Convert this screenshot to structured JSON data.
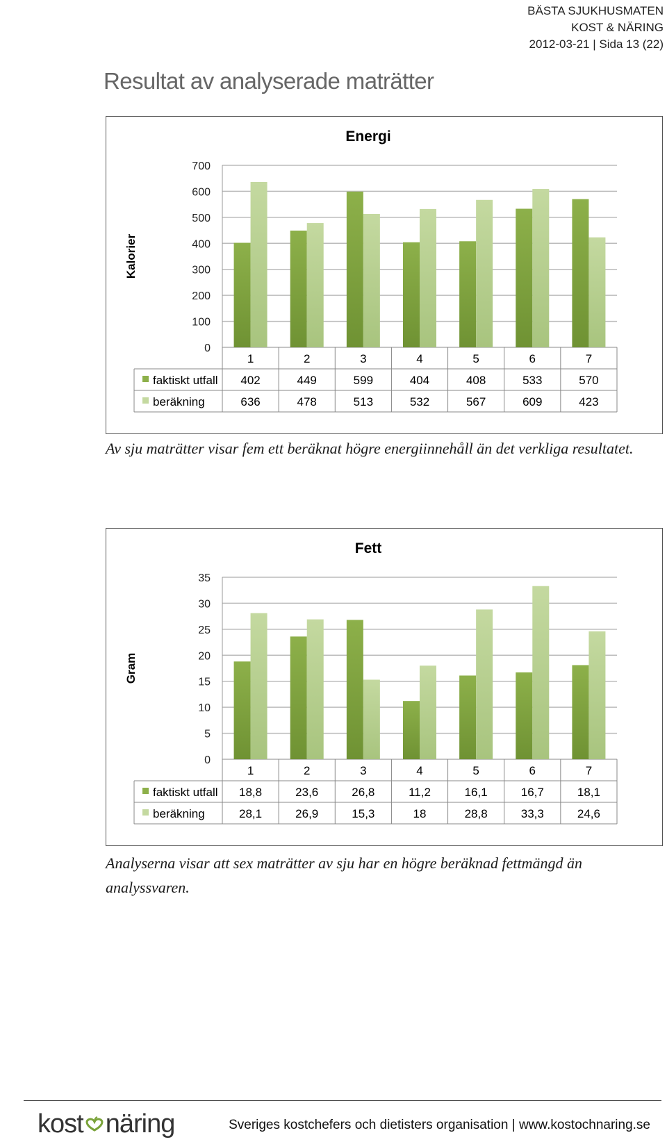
{
  "header": {
    "org": "BÄSTA SJUKHUSMATEN",
    "dept": "KOST & NÄRING",
    "date": "2012-03-21",
    "page": "Sida 13 (22)"
  },
  "page_title": "Resultat av analyserade maträtter",
  "colors": {
    "series1": "#8db04a",
    "series2": "#c4d9a0",
    "grid": "#bbbbbb"
  },
  "chart_data": [
    {
      "type": "bar",
      "title": "Energi",
      "ylabel": "Kalorier",
      "xlabel": "",
      "categories": [
        "1",
        "2",
        "3",
        "4",
        "5",
        "6",
        "7"
      ],
      "ylim": [
        0,
        700
      ],
      "ytick_labels": [
        "700",
        "600",
        "500",
        "400",
        "300",
        "200",
        "100",
        "0"
      ],
      "series": [
        {
          "name": "faktiskt utfall",
          "values": [
            402,
            449,
            599,
            404,
            408,
            533,
            570
          ],
          "labels": [
            "402",
            "449",
            "599",
            "404",
            "408",
            "533",
            "570"
          ]
        },
        {
          "name": "beräkning",
          "values": [
            636,
            478,
            513,
            532,
            567,
            609,
            423
          ],
          "labels": [
            "636",
            "478",
            "513",
            "532",
            "567",
            "609",
            "423"
          ]
        }
      ],
      "grid": true,
      "legend": "data-table"
    },
    {
      "type": "bar",
      "title": "Fett",
      "ylabel": "Gram",
      "xlabel": "",
      "categories": [
        "1",
        "2",
        "3",
        "4",
        "5",
        "6",
        "7"
      ],
      "ylim": [
        0,
        35
      ],
      "ytick_labels": [
        "35",
        "30",
        "25",
        "20",
        "15",
        "10",
        "5",
        "0"
      ],
      "series": [
        {
          "name": "faktiskt utfall",
          "values": [
            18.8,
            23.6,
            26.8,
            11.2,
            16.1,
            16.7,
            18.1
          ],
          "labels": [
            "18,8",
            "23,6",
            "26,8",
            "11,2",
            "16,1",
            "16,7",
            "18,1"
          ]
        },
        {
          "name": "beräkning",
          "values": [
            28.1,
            26.9,
            15.3,
            18,
            28.8,
            33.3,
            24.6
          ],
          "labels": [
            "28,1",
            "26,9",
            "15,3",
            "18",
            "28,8",
            "33,3",
            "24,6"
          ]
        }
      ],
      "grid": true,
      "legend": "data-table"
    }
  ],
  "captions": {
    "energi": "Av sju maträtter visar fem ett beräknat högre energiinnehåll än det verkliga resultatet.",
    "fett": "Analyserna visar att sex maträtter av sju har en högre beräknad fettmängd än analyssvaren."
  },
  "footer": {
    "logo_left": "kost",
    "logo_right": "näring",
    "logo_icon": "heart-apple-icon",
    "org_text": "Sveriges kostchefers och dietisters organisation",
    "url": "www.kostochnaring.se"
  }
}
